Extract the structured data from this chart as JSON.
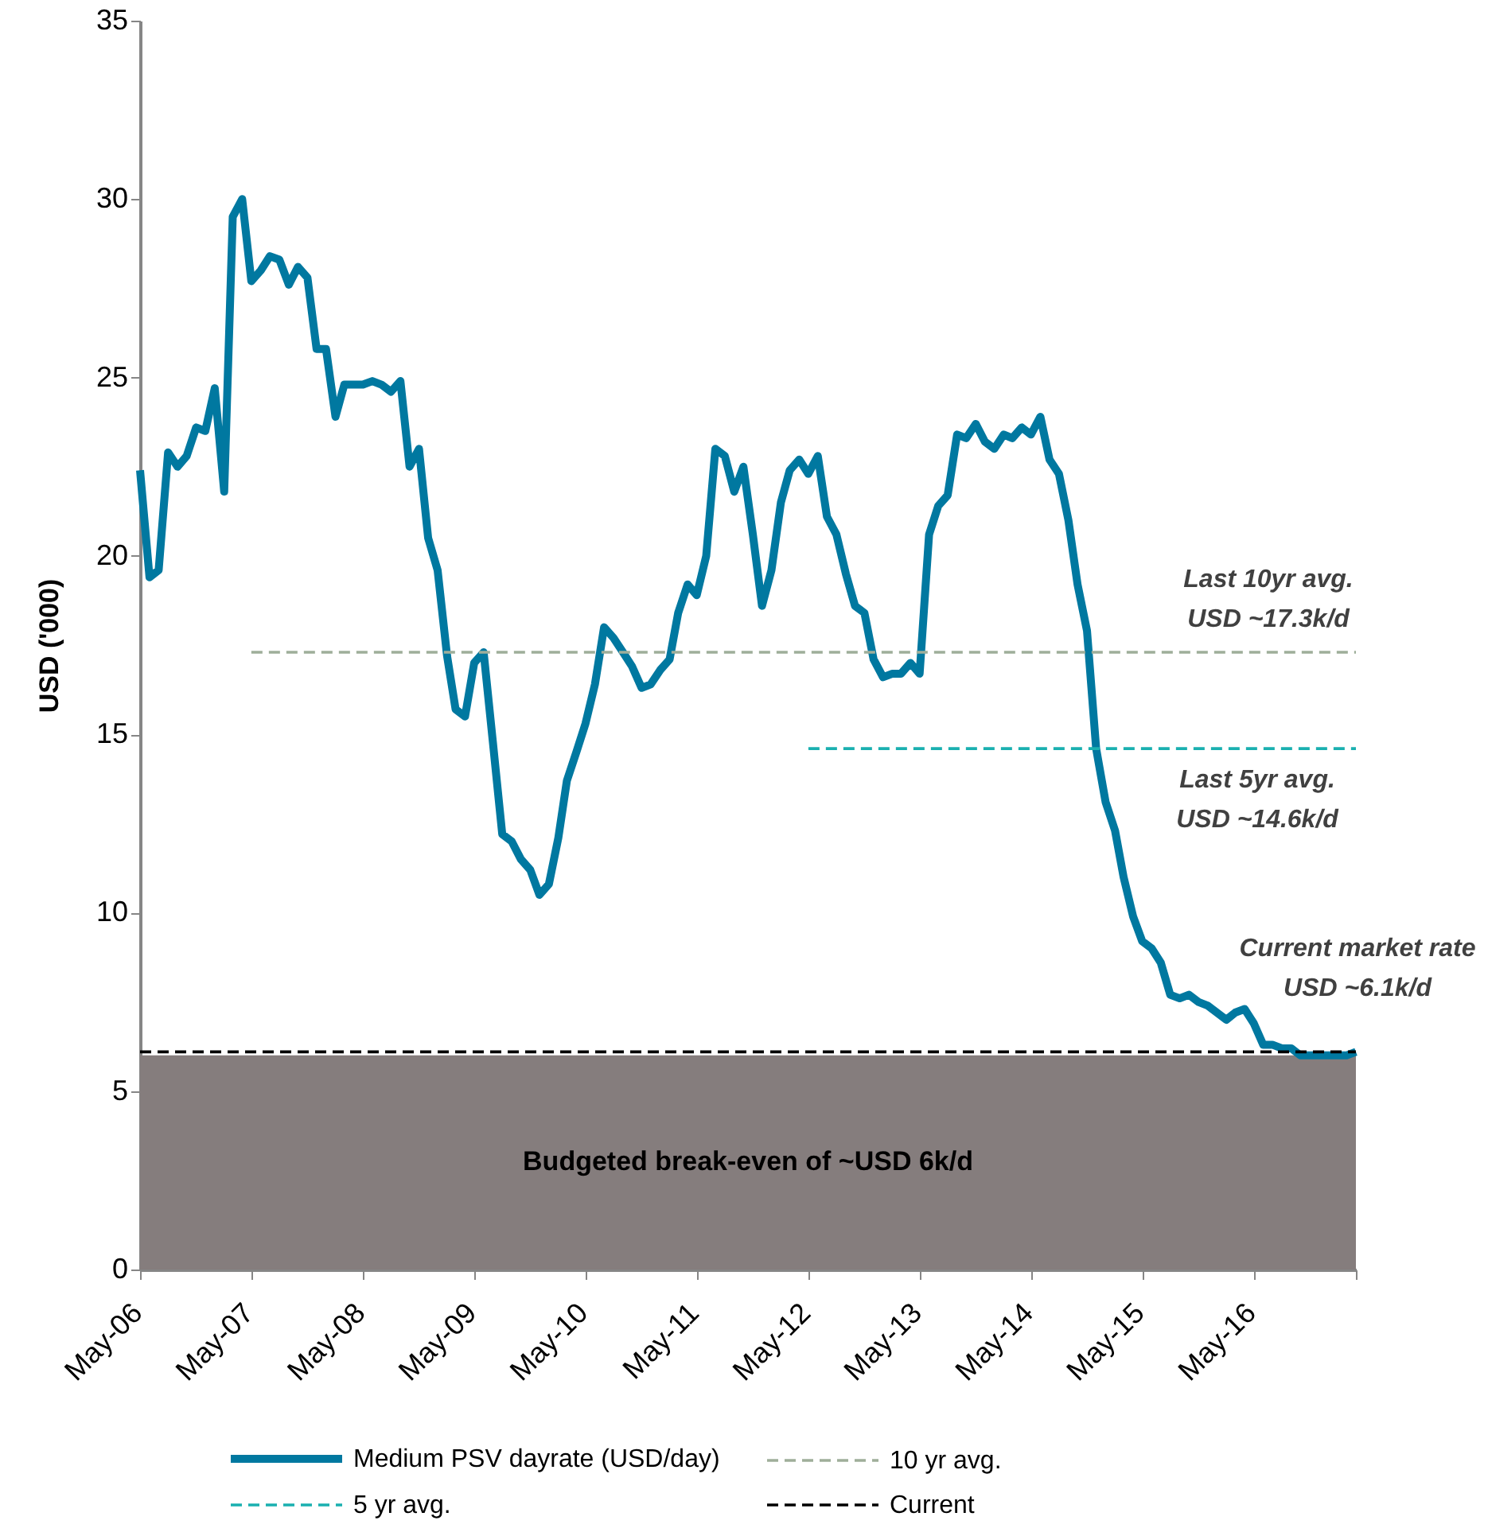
{
  "chart_data": {
    "type": "line",
    "ylabel": "USD ('000)",
    "x": [
      "2006-05",
      "2006-06",
      "2006-07",
      "2006-08",
      "2006-09",
      "2006-10",
      "2006-11",
      "2006-12",
      "2007-01",
      "2007-02",
      "2007-03",
      "2007-04",
      "2007-05",
      "2007-06",
      "2007-07",
      "2007-08",
      "2007-09",
      "2007-10",
      "2007-11",
      "2007-12",
      "2008-01",
      "2008-02",
      "2008-03",
      "2008-04",
      "2008-05",
      "2008-06",
      "2008-07",
      "2008-08",
      "2008-09",
      "2008-10",
      "2008-11",
      "2008-12",
      "2009-01",
      "2009-02",
      "2009-03",
      "2009-04",
      "2009-05",
      "2009-06",
      "2009-07",
      "2009-08",
      "2009-09",
      "2009-10",
      "2009-11",
      "2009-12",
      "2010-01",
      "2010-02",
      "2010-03",
      "2010-04",
      "2010-05",
      "2010-06",
      "2010-07",
      "2010-08",
      "2010-09",
      "2010-10",
      "2010-11",
      "2010-12",
      "2011-01",
      "2011-02",
      "2011-03",
      "2011-04",
      "2011-05",
      "2011-06",
      "2011-07",
      "2011-08",
      "2011-09",
      "2011-10",
      "2011-11",
      "2011-12",
      "2012-01",
      "2012-02",
      "2012-03",
      "2012-04",
      "2012-05",
      "2012-06",
      "2012-07",
      "2012-08",
      "2012-09",
      "2012-10",
      "2012-11",
      "2012-12",
      "2013-01",
      "2013-02",
      "2013-03",
      "2013-04",
      "2013-05",
      "2013-06",
      "2013-07",
      "2013-08",
      "2013-09",
      "2013-10",
      "2013-11",
      "2013-12",
      "2014-01",
      "2014-02",
      "2014-03",
      "2014-04",
      "2014-05",
      "2014-06",
      "2014-07",
      "2014-08",
      "2014-09",
      "2014-10",
      "2014-11",
      "2014-12",
      "2015-01",
      "2015-02",
      "2015-03",
      "2015-04",
      "2015-05",
      "2015-06",
      "2015-07",
      "2015-08",
      "2015-09",
      "2015-10",
      "2015-11",
      "2015-12",
      "2016-01",
      "2016-02",
      "2016-03",
      "2016-04",
      "2016-05",
      "2016-06",
      "2016-07",
      "2016-08",
      "2016-09",
      "2016-10",
      "2016-11",
      "2016-12",
      "2017-01",
      "2017-02",
      "2017-03",
      "2017-04"
    ],
    "series": [
      {
        "name": "Medium PSV dayrate (USD/day)",
        "color": "#0078a0",
        "values": [
          22.4,
          19.4,
          19.6,
          22.9,
          22.5,
          22.8,
          23.6,
          23.5,
          24.7,
          21.8,
          29.5,
          30.0,
          27.7,
          28.0,
          28.4,
          28.3,
          27.6,
          28.1,
          27.8,
          25.8,
          25.8,
          23.9,
          24.8,
          24.8,
          24.8,
          24.9,
          24.8,
          24.6,
          24.9,
          22.5,
          23.0,
          20.5,
          19.6,
          17.2,
          15.7,
          15.5,
          17.0,
          17.3,
          14.8,
          12.2,
          12.0,
          11.5,
          11.2,
          10.5,
          10.8,
          12.1,
          13.7,
          14.5,
          15.3,
          16.4,
          18.0,
          17.7,
          17.3,
          16.9,
          16.3,
          16.4,
          16.8,
          17.1,
          18.4,
          19.2,
          18.9,
          20.0,
          23.0,
          22.8,
          21.8,
          22.5,
          20.6,
          18.6,
          19.6,
          21.5,
          22.4,
          22.7,
          22.3,
          22.8,
          21.1,
          20.6,
          19.5,
          18.6,
          18.4,
          17.1,
          16.6,
          16.7,
          16.7,
          17.0,
          16.7,
          20.6,
          21.4,
          21.7,
          23.4,
          23.3,
          23.7,
          23.2,
          23.0,
          23.4,
          23.3,
          23.6,
          23.4,
          23.9,
          22.7,
          22.3,
          21.0,
          19.2,
          17.9,
          14.6,
          13.1,
          12.3,
          11.0,
          9.9,
          9.2,
          9.0,
          8.6,
          7.7,
          7.6,
          7.7,
          7.5,
          7.4,
          7.2,
          7.0,
          7.2,
          7.3,
          6.9,
          6.3,
          6.3,
          6.2,
          6.2,
          6.0,
          6.0,
          6.0,
          6.0,
          6.0,
          6.0,
          6.1
        ]
      },
      {
        "name": "10 yr avg.",
        "color": "#9fae9a",
        "line_style": "dashed",
        "x": [
          "2007-05",
          "2017-04"
        ],
        "values": [
          17.3,
          17.3
        ]
      },
      {
        "name": "5 yr avg.",
        "color": "#1ab0b0",
        "line_style": "dashed",
        "x": [
          "2012-05",
          "2017-04"
        ],
        "values": [
          14.6,
          14.6
        ]
      },
      {
        "name": "Current",
        "color": "#000000",
        "line_style": "dashed",
        "x": [
          "2006-05",
          "2017-04"
        ],
        "values": [
          6.1,
          6.1
        ]
      }
    ],
    "line_style": "solid",
    "xlim": [
      "2006-05",
      "2017-04"
    ],
    "xticks": [
      {
        "value": "2006-05",
        "label": "May-06"
      },
      {
        "value": "2007-05",
        "label": "May-07"
      },
      {
        "value": "2008-05",
        "label": "May-08"
      },
      {
        "value": "2009-05",
        "label": "May-09"
      },
      {
        "value": "2010-05",
        "label": "May-10"
      },
      {
        "value": "2011-05",
        "label": "May-11"
      },
      {
        "value": "2012-05",
        "label": "May-12"
      },
      {
        "value": "2013-05",
        "label": "May-13"
      },
      {
        "value": "2014-05",
        "label": "May-14"
      },
      {
        "value": "2015-05",
        "label": "May-15"
      },
      {
        "value": "2016-05",
        "label": "May-16"
      },
      {
        "value": "2017-04",
        "label": null
      }
    ],
    "ylim": [
      0,
      35
    ],
    "yticks": [
      0,
      5,
      10,
      15,
      20,
      25,
      30,
      35
    ],
    "bands": [
      {
        "axis": "y",
        "from": 0,
        "to": 6,
        "label": "Budgeted break-even of ~USD 6k/d",
        "color": "#857d7d"
      }
    ],
    "annotations": [
      "Last 10yr avg.\nUSD ~17.3k/d",
      "Last 5yr avg.\nUSD ~14.6k/d",
      "Current market rate\nUSD ~6.1k/d"
    ],
    "grid": false,
    "legend": "bottom"
  }
}
